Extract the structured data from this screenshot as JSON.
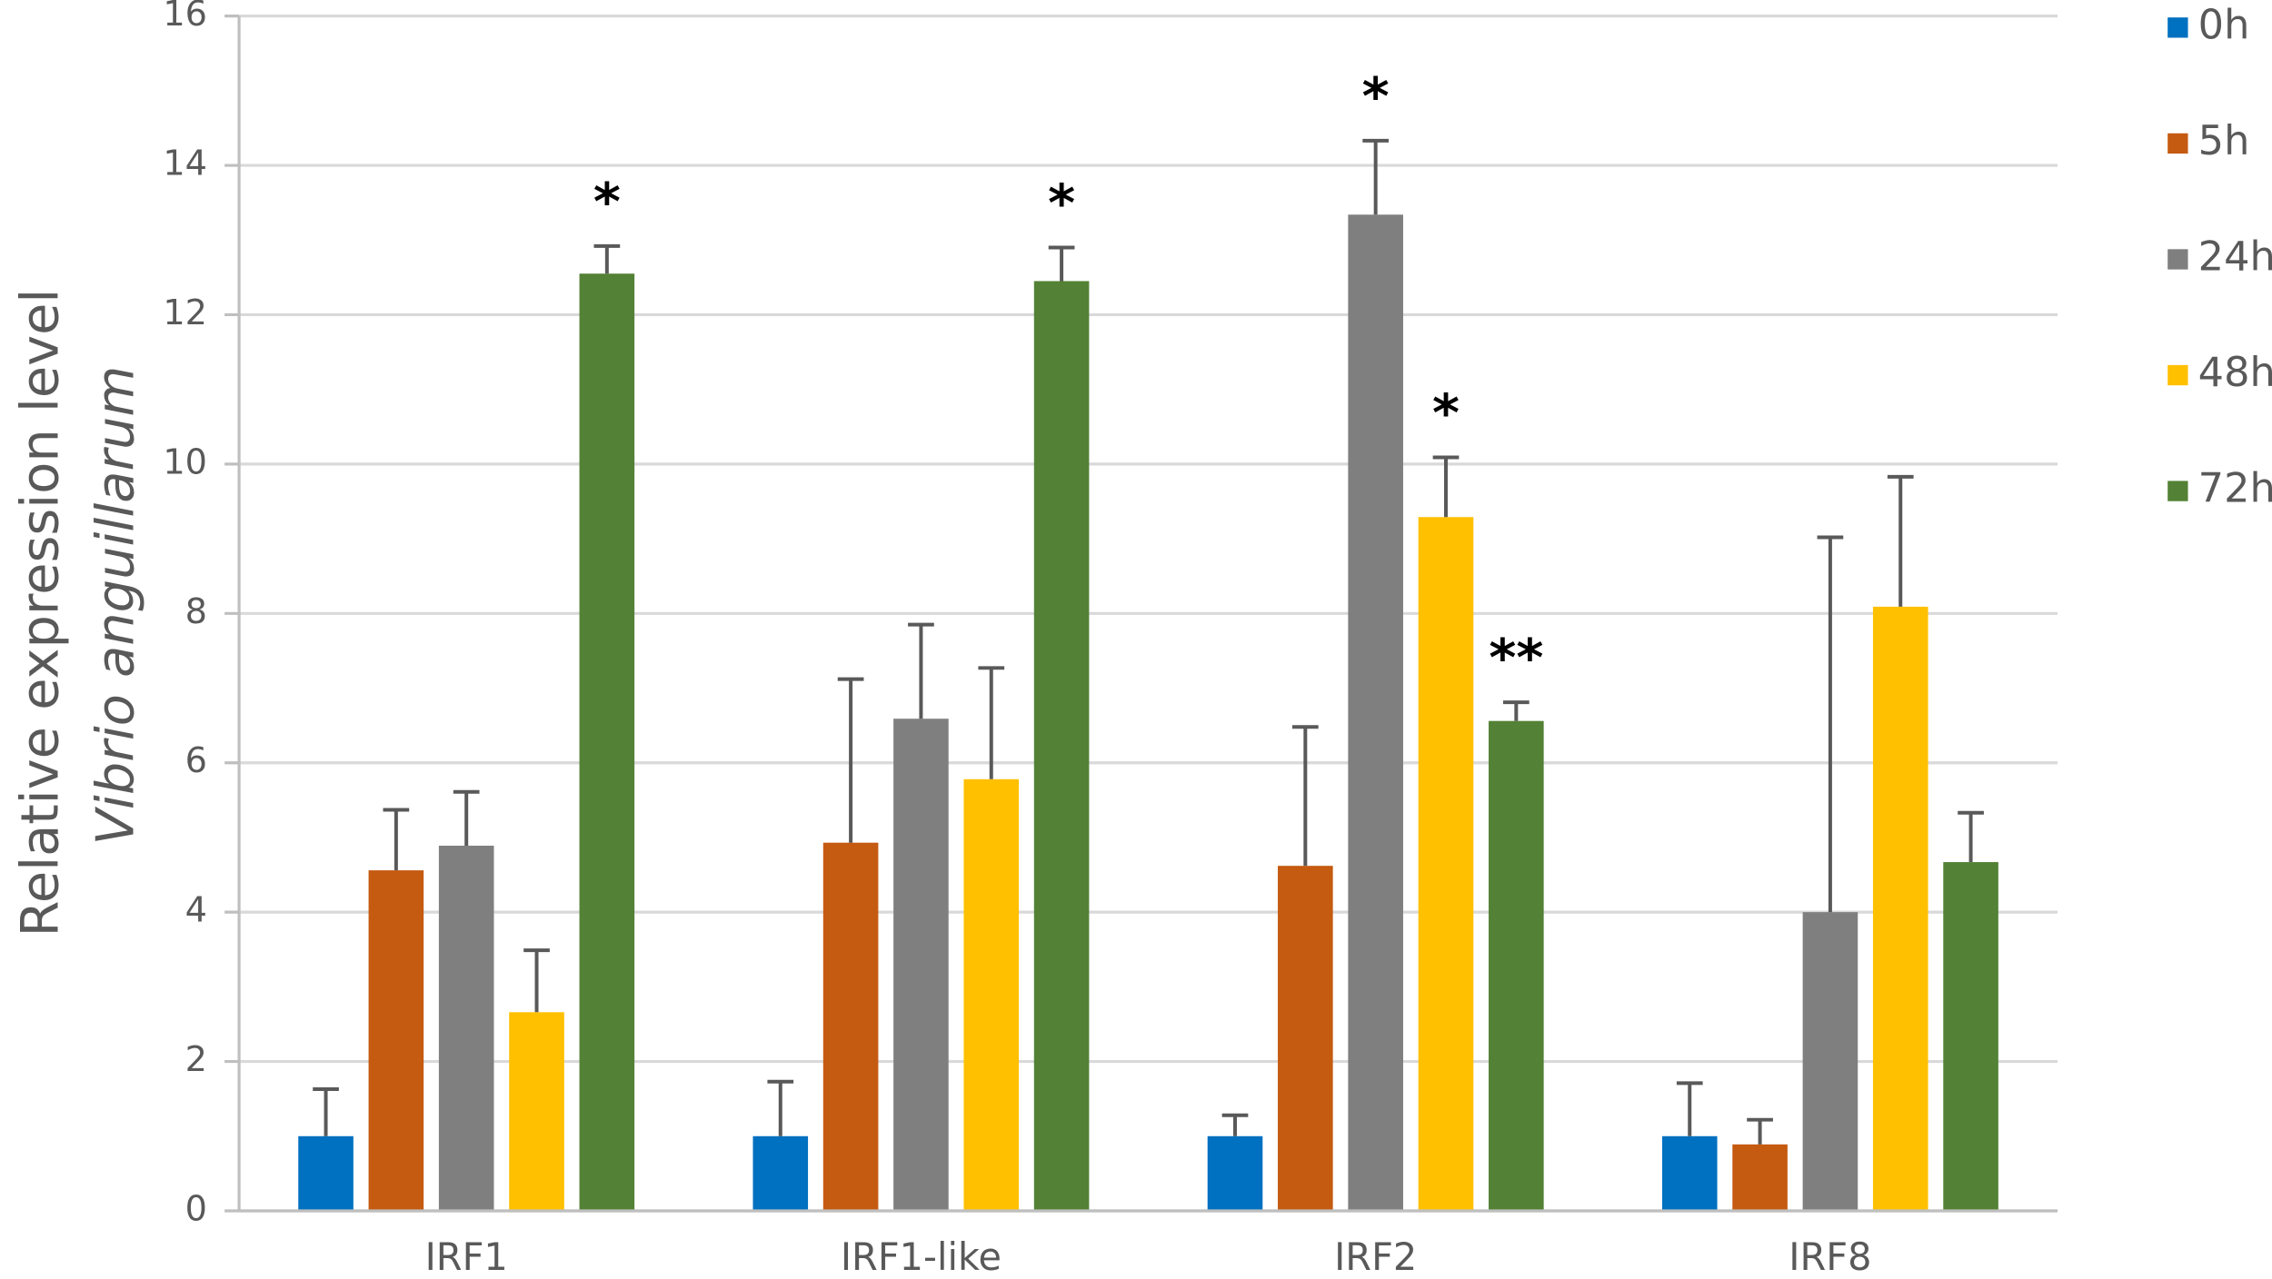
{
  "chart_data": {
    "type": "bar",
    "ylabel": "Relative expression level",
    "ylabel_italic": "Vibrio anguillarum",
    "categories": [
      "IRF1",
      "IRF1-like",
      "IRF2",
      "IRF8"
    ],
    "series": [
      {
        "name": "0h",
        "color": "#0070c0",
        "values": [
          1.0,
          1.0,
          1.0,
          1.0
        ],
        "errors": [
          0.63,
          0.73,
          0.28,
          0.71
        ]
      },
      {
        "name": "5h",
        "color": "#c55a11",
        "values": [
          4.56,
          4.93,
          4.62,
          0.89
        ],
        "errors": [
          0.81,
          2.19,
          1.86,
          0.33
        ]
      },
      {
        "name": "24h",
        "color": "#7f7f7f",
        "values": [
          4.89,
          6.59,
          13.34,
          4.0
        ],
        "errors": [
          0.72,
          1.26,
          0.99,
          5.02
        ]
      },
      {
        "name": "48h",
        "color": "#ffc000",
        "values": [
          2.66,
          5.78,
          9.29,
          8.09
        ],
        "errors": [
          0.83,
          1.49,
          0.8,
          1.74
        ]
      },
      {
        "name": "72h",
        "color": "#538135",
        "values": [
          12.55,
          12.45,
          6.56,
          4.67
        ],
        "errors": [
          0.37,
          0.45,
          0.25,
          0.66
        ]
      }
    ],
    "annotations": [
      {
        "text": "*",
        "category": "IRF1",
        "series": "72h"
      },
      {
        "text": "*",
        "category": "IRF1-like",
        "series": "72h"
      },
      {
        "text": "*",
        "category": "IRF2",
        "series": "24h"
      },
      {
        "text": "*",
        "category": "IRF2",
        "series": "48h"
      },
      {
        "text": "**",
        "category": "IRF2",
        "series": "72h"
      }
    ],
    "ylim": [
      0,
      16
    ],
    "yticks": [
      0,
      2,
      4,
      6,
      8,
      10,
      12,
      14,
      16
    ],
    "grid": true,
    "legend": "right"
  }
}
